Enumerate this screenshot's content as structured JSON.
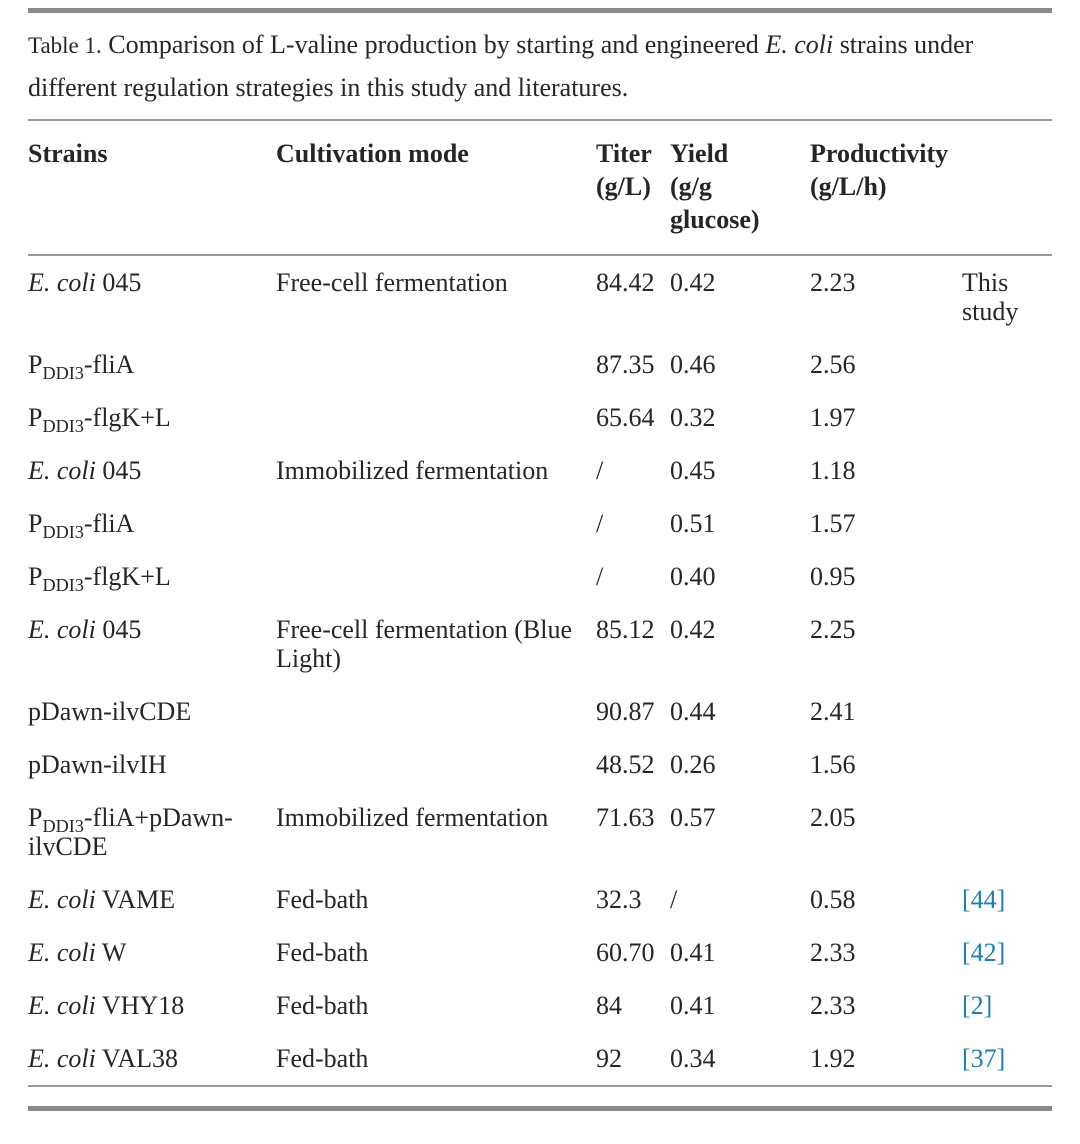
{
  "page": {
    "background": "#ffffff",
    "text_color": "#262626",
    "rule_color": "#8a8a8a",
    "link_color": "#1e7fad"
  },
  "caption": {
    "label": "Table 1.",
    "text": "Comparison of L-valine production by starting and engineered *E. coli* strains under different regulation strategies in this study and literatures."
  },
  "table": {
    "columns": [
      {
        "label": "Strains"
      },
      {
        "label": "Cultivation mode"
      },
      {
        "label": "Titer\n(g/L)"
      },
      {
        "label": "Yield\n(g/g\nglucose)"
      },
      {
        "label": "Productivity\n(g/L/h)"
      },
      {
        "label": ""
      }
    ],
    "rows": [
      {
        "strain": "*E. coli* 045",
        "mode": "Free-cell fermentation",
        "titer": "84.42",
        "yield": "0.42",
        "productivity": "2.23",
        "ref": "This study",
        "ref_is_link": false
      },
      {
        "strain": "P~DDI3~-fliA",
        "mode": "",
        "titer": "87.35",
        "yield": "0.46",
        "productivity": "2.56",
        "ref": "",
        "ref_is_link": false
      },
      {
        "strain": "P~DDI3~-flgK+L",
        "mode": "",
        "titer": "65.64",
        "yield": "0.32",
        "productivity": "1.97",
        "ref": "",
        "ref_is_link": false
      },
      {
        "strain": "*E. coli* 045",
        "mode": "Immobilized fermentation",
        "titer": "/",
        "yield": "0.45",
        "productivity": "1.18",
        "ref": "",
        "ref_is_link": false
      },
      {
        "strain": "P~DDI3~-fliA",
        "mode": "",
        "titer": "/",
        "yield": "0.51",
        "productivity": "1.57",
        "ref": "",
        "ref_is_link": false
      },
      {
        "strain": "P~DDI3~-flgK+L",
        "mode": "",
        "titer": "/",
        "yield": "0.40",
        "productivity": "0.95",
        "ref": "",
        "ref_is_link": false
      },
      {
        "strain": "*E. coli* 045",
        "mode": "Free-cell fermentation (Blue Light)",
        "titer": "85.12",
        "yield": "0.42",
        "productivity": "2.25",
        "ref": "",
        "ref_is_link": false
      },
      {
        "strain": "pDawn-ilvCDE",
        "mode": "",
        "titer": "90.87",
        "yield": "0.44",
        "productivity": "2.41",
        "ref": "",
        "ref_is_link": false
      },
      {
        "strain": "pDawn-ilvIH",
        "mode": "",
        "titer": "48.52",
        "yield": "0.26",
        "productivity": "1.56",
        "ref": "",
        "ref_is_link": false
      },
      {
        "strain": "P~DDI3~-fliA+pDawn-ilvCDE",
        "mode": "Immobilized fermentation",
        "titer": "71.63",
        "yield": "0.57",
        "productivity": "2.05",
        "ref": "",
        "ref_is_link": false
      },
      {
        "strain": "*E. coli* VAME",
        "mode": "Fed-bath",
        "titer": "32.3",
        "yield": "/",
        "productivity": "0.58",
        "ref": "[44]",
        "ref_is_link": true
      },
      {
        "strain": "*E. coli* W",
        "mode": "Fed-bath",
        "titer": "60.70",
        "yield": "0.41",
        "productivity": "2.33",
        "ref": "[42]",
        "ref_is_link": true
      },
      {
        "strain": "*E. coli* VHY18",
        "mode": "Fed-bath",
        "titer": "84",
        "yield": "0.41",
        "productivity": "2.33",
        "ref": "[2]",
        "ref_is_link": true
      },
      {
        "strain": "*E. coli* VAL38",
        "mode": "Fed-bath",
        "titer": "92",
        "yield": "0.34",
        "productivity": "1.92",
        "ref": "[37]",
        "ref_is_link": true
      }
    ]
  }
}
